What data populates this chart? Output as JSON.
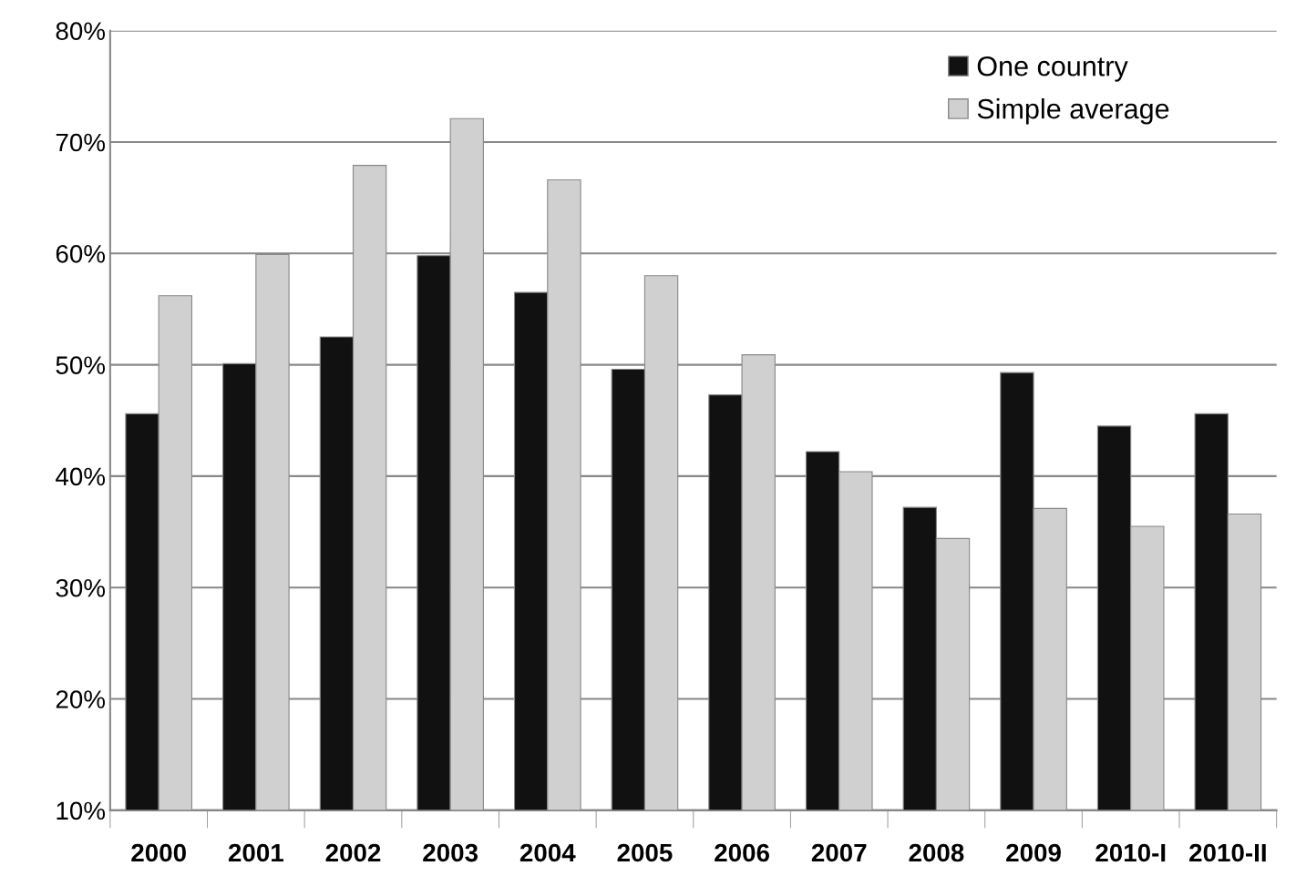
{
  "chart_data": {
    "type": "bar",
    "categories": [
      "2000",
      "2001",
      "2002",
      "2003",
      "2004",
      "2005",
      "2006",
      "2007",
      "2008",
      "2009",
      "2010-I",
      "2010-II"
    ],
    "series": [
      {
        "name": "One country",
        "color": "#111111",
        "values": [
          45.6,
          50.1,
          52.5,
          59.8,
          56.5,
          49.6,
          47.3,
          42.2,
          37.2,
          49.3,
          44.5,
          45.6
        ]
      },
      {
        "name": "Simple average",
        "color": "#d0d0d0",
        "values": [
          56.2,
          59.9,
          67.9,
          72.1,
          66.6,
          58.0,
          50.9,
          40.4,
          34.4,
          37.1,
          35.5,
          36.6
        ]
      }
    ],
    "ylim": [
      10,
      80
    ],
    "yticks": [
      {
        "value": 10,
        "label": "10%"
      },
      {
        "value": 20,
        "label": "20%"
      },
      {
        "value": 30,
        "label": "30%"
      },
      {
        "value": 40,
        "label": "40%"
      },
      {
        "value": 50,
        "label": "50%"
      },
      {
        "value": 60,
        "label": "60%"
      },
      {
        "value": 70,
        "label": "70%"
      },
      {
        "value": 80,
        "label": "80%"
      }
    ],
    "grid": "y",
    "legend": "top right"
  }
}
